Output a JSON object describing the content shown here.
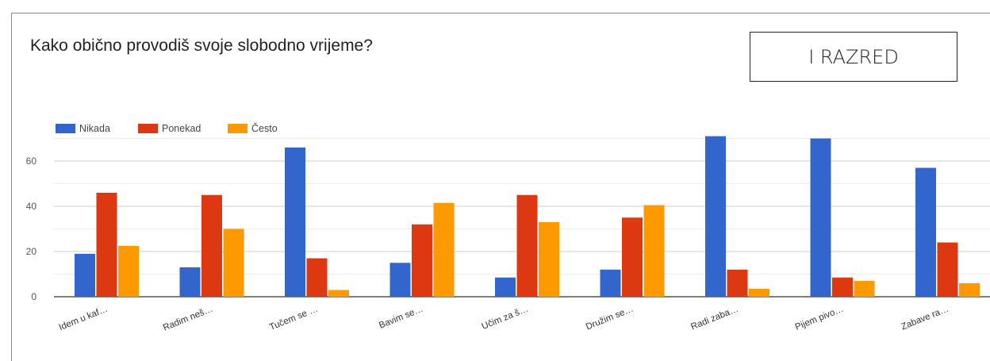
{
  "header": {
    "title": "Kako obično provodiš svoje slobodno vrijeme?",
    "grade_label": "I RAZRED"
  },
  "chart_data": {
    "type": "bar",
    "title": "Kako obično provodiš svoje slobodno vrijeme?",
    "xlabel": "",
    "ylabel": "",
    "categories": [
      "Idem u kaf…",
      "Radim neš…",
      "Tučem se …",
      "Bavim se…",
      "Učim za š…",
      "Družim se…",
      "Radi zaba…",
      "Pijem pivo…",
      "Zabave ra…"
    ],
    "series": [
      {
        "name": "Nikada",
        "color": "#3366cc",
        "values": [
          19,
          13,
          66,
          15,
          8.5,
          12,
          71,
          70,
          57
        ]
      },
      {
        "name": "Ponekad",
        "color": "#dc3912",
        "values": [
          46,
          45,
          17,
          32,
          45,
          35,
          12,
          8.5,
          24
        ]
      },
      {
        "name": "Često",
        "color": "#ff9900",
        "values": [
          22.5,
          30,
          3,
          41.5,
          33,
          40.5,
          3.5,
          7,
          6
        ]
      }
    ],
    "yticks": [
      0,
      20,
      40,
      60
    ],
    "ylim": [
      0,
      70
    ],
    "grid": true,
    "legend": "top-left"
  }
}
